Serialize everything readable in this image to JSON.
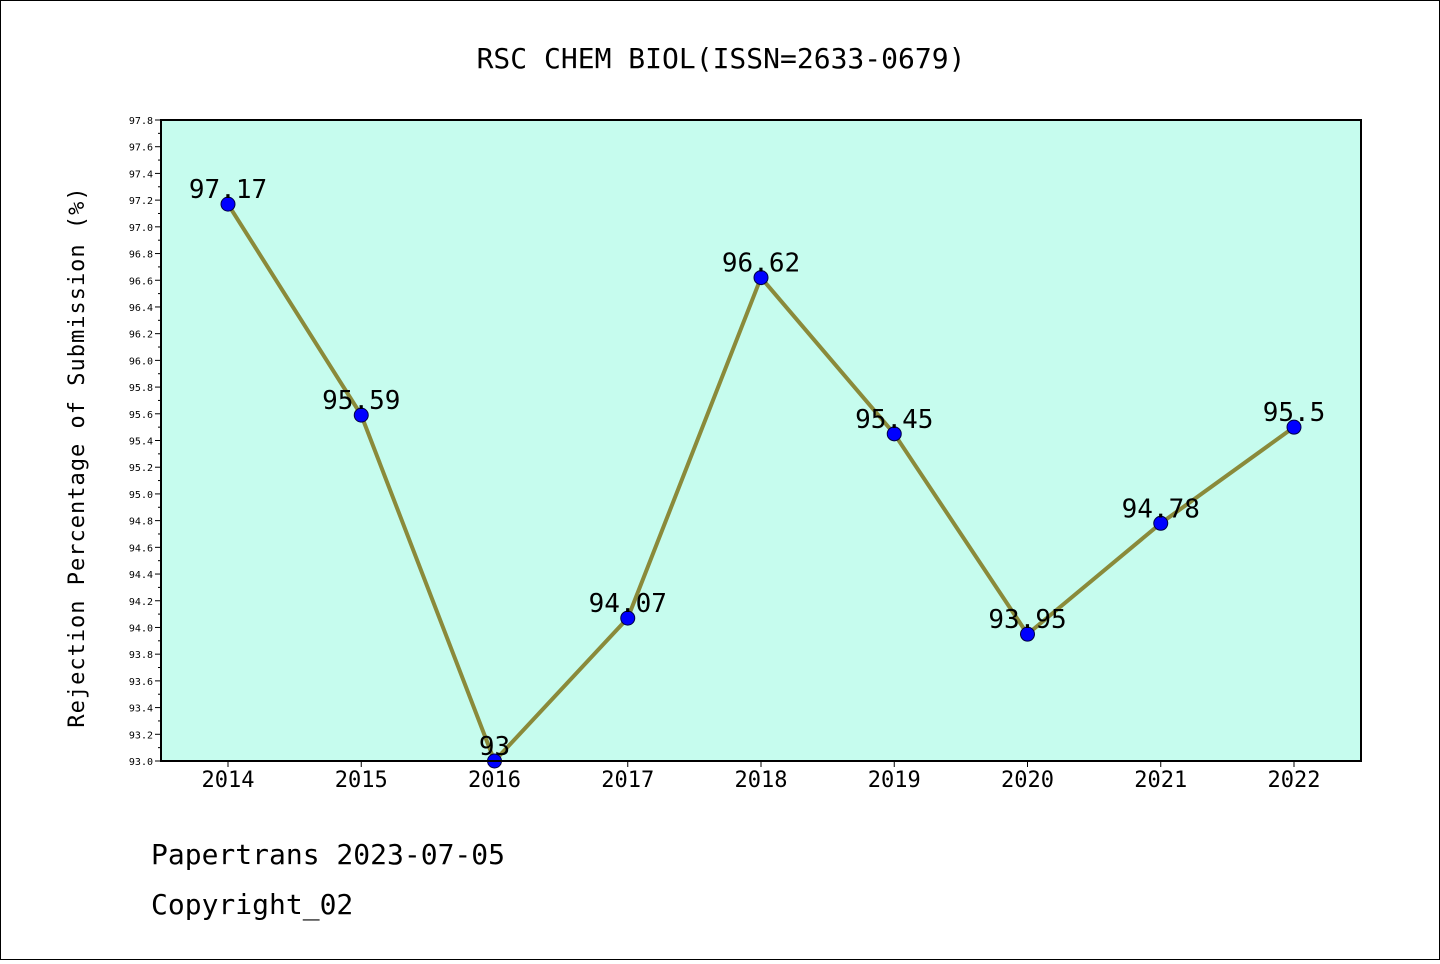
{
  "chart_data": {
    "type": "line",
    "title": "RSC CHEM BIOL(ISSN=2633-0679)",
    "xlabel": "",
    "ylabel": "Rejection Percentage of Submission (%)",
    "categories": [
      "2014",
      "2015",
      "2016",
      "2017",
      "2018",
      "2019",
      "2020",
      "2021",
      "2022"
    ],
    "values": [
      97.17,
      95.59,
      93,
      94.07,
      96.62,
      95.45,
      93.95,
      94.78,
      95.5
    ],
    "data_labels": [
      "97.17",
      "95.59",
      "93",
      "94.07",
      "96.62",
      "95.45",
      "93.95",
      "94.78",
      "95.5"
    ],
    "ylim": [
      93.0,
      97.8
    ],
    "yticks": [
      "93.0",
      "93.2",
      "93.4",
      "93.6",
      "93.8",
      "94.0",
      "94.2",
      "94.4",
      "94.6",
      "94.8",
      "95.0",
      "95.2",
      "95.4",
      "95.6",
      "95.8",
      "96.0",
      "96.2",
      "96.4",
      "96.6",
      "96.8",
      "97.0",
      "97.2",
      "97.4",
      "97.6",
      "97.8"
    ],
    "grid": false,
    "colors": {
      "plot_background": "#c6fcee",
      "line": "#8a8a3a",
      "marker": "#0000ff"
    }
  },
  "footer": {
    "line1": "Papertrans 2023-07-05",
    "line2": "Copyright_02"
  }
}
